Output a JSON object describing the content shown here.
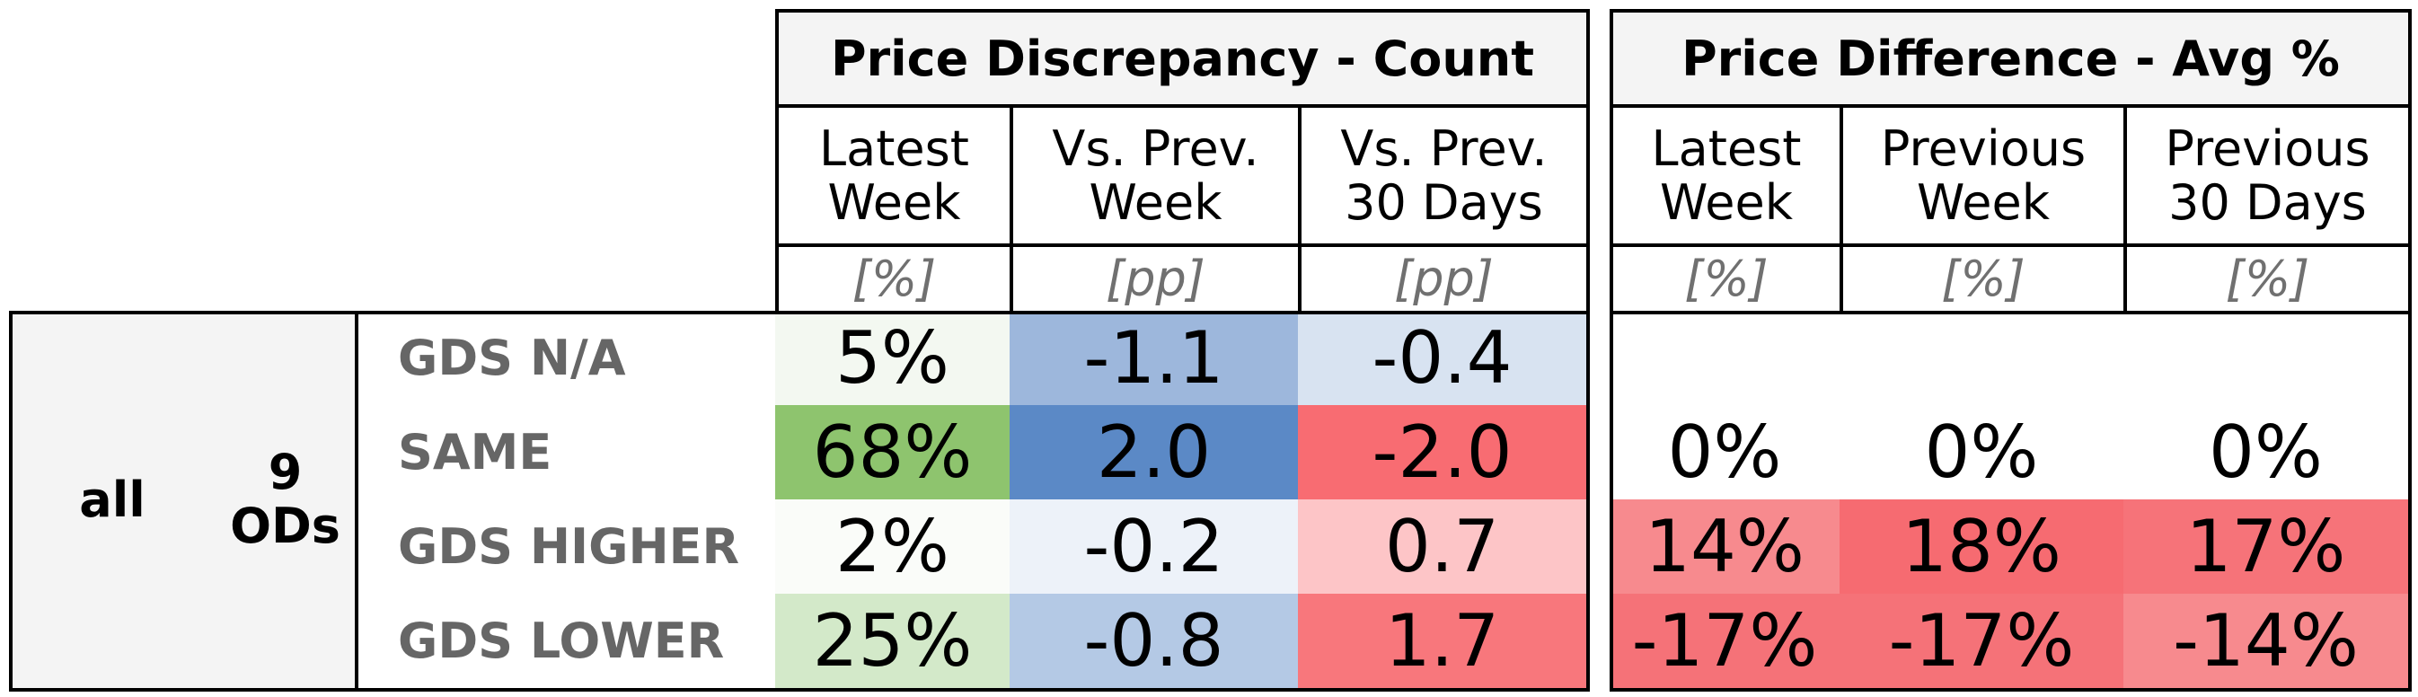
{
  "chart_data": {
    "type": "table",
    "row_group": {
      "segment": "all",
      "ods_count": "9",
      "ods_unit": "ODs"
    },
    "groups": [
      {
        "title": "Price Discrepancy - Count",
        "columns": [
          {
            "line1": "Latest",
            "line2": "Week",
            "unit": "[%]"
          },
          {
            "line1": "Vs. Prev.",
            "line2": "Week",
            "unit": "[pp]"
          },
          {
            "line1": "Vs. Prev.",
            "line2": "30 Days",
            "unit": "[pp]"
          }
        ]
      },
      {
        "title": "Price Difference - Avg %",
        "columns": [
          {
            "line1": "Latest",
            "line2": "Week",
            "unit": "[%]"
          },
          {
            "line1": "Previous",
            "line2": "Week",
            "unit": "[%]"
          },
          {
            "line1": "Previous",
            "line2": "30 Days",
            "unit": "[%]"
          }
        ]
      }
    ],
    "rows": [
      {
        "label": "GDS N/A",
        "values": [
          "5%",
          "-1.1",
          "-0.4",
          "",
          "",
          ""
        ],
        "colors": [
          "#f3f8f1",
          "#9db7dc",
          "#d8e3f1",
          "#ffffff",
          "#ffffff",
          "#ffffff"
        ]
      },
      {
        "label": "SAME",
        "values": [
          "68%",
          "2.0",
          "-2.0",
          "0%",
          "0%",
          "0%"
        ],
        "colors": [
          "#8ec46e",
          "#5b89c6",
          "#f86c72",
          "#ffffff",
          "#ffffff",
          "#ffffff"
        ]
      },
      {
        "label": "GDS HIGHER",
        "values": [
          "2%",
          "-0.2",
          "0.7",
          "14%",
          "18%",
          "17%"
        ],
        "colors": [
          "#fafcf9",
          "#edf2f9",
          "#fdc5c7",
          "#f78a8e",
          "#f66b71",
          "#f67379"
        ]
      },
      {
        "label": "GDS LOWER",
        "values": [
          "25%",
          "-0.8",
          "1.7",
          "-17%",
          "-17%",
          "-14%"
        ],
        "colors": [
          "#d3e9c9",
          "#b4c9e5",
          "#f8777c",
          "#f57278",
          "#f57278",
          "#f78a8e"
        ]
      }
    ]
  }
}
